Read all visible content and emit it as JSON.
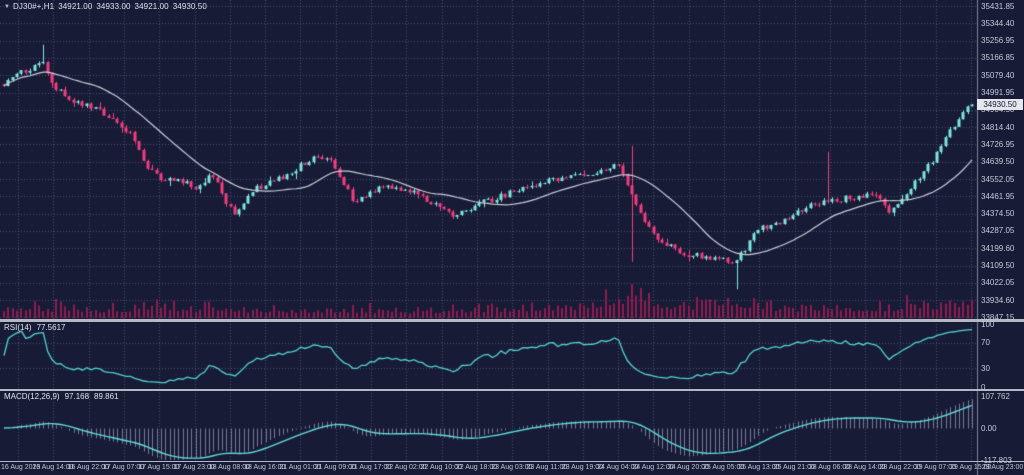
{
  "title": {
    "dropdown_icon": "▼",
    "symbol_timeframe": "DJ30#+,H1",
    "open": "34921.00",
    "high": "34933.00",
    "low": "34921.00",
    "close": "34930.50"
  },
  "price_axis": {
    "labels": [
      "35431.85",
      "35344.40",
      "35256.95",
      "35166.85",
      "35079.40",
      "34991.95",
      "34904.50",
      "34814.40",
      "34726.95",
      "34639.50",
      "34552.05",
      "34461.95",
      "34374.50",
      "34287.05",
      "34199.60",
      "34109.50",
      "34022.05",
      "33934.60",
      "33847.15"
    ],
    "current_price": "34930.50"
  },
  "rsi_pane": {
    "caption": "RSI(14)",
    "value": "77.5617",
    "axis_labels": [
      {
        "text": "100",
        "v": 100
      },
      {
        "text": "70",
        "v": 70
      },
      {
        "text": "30",
        "v": 30
      },
      {
        "text": "0",
        "v": 0
      }
    ],
    "levels": [
      70,
      30
    ]
  },
  "macd_pane": {
    "caption": "MACD(12,26,9)",
    "macd_value": "97.168",
    "signal_value": "89.861",
    "axis_labels": [
      {
        "text": "107.762",
        "v": 107.762
      },
      {
        "text": "0.00",
        "v": 0
      },
      {
        "text": "-117.803",
        "v": -117.803
      }
    ]
  },
  "time_axis": {
    "labels": [
      "16 Aug 2023",
      "16 Aug 14:00",
      "16 Aug 22:00",
      "17 Aug 07:00",
      "17 Aug 15:00",
      "17 Aug 23:00",
      "18 Aug 08:00",
      "18 Aug 16:00",
      "21 Aug 01:00",
      "21 Aug 09:00",
      "21 Aug 17:00",
      "22 Aug 02:00",
      "22 Aug 10:00",
      "22 Aug 18:00",
      "23 Aug 03:00",
      "23 Aug 11:00",
      "23 Aug 19:00",
      "24 Aug 04:00",
      "24 Aug 12:00",
      "24 Aug 20:00",
      "25 Aug 05:00",
      "25 Aug 13:00",
      "25 Aug 21:00",
      "28 Aug 06:00",
      "28 Aug 14:00",
      "28 Aug 22:00",
      "29 Aug 07:00",
      "29 Aug 15:00",
      "29 Aug 23:00"
    ]
  },
  "colors": {
    "background": "#171b36",
    "grid": "rgba(118,126,168,0.50)",
    "bull_candle": "#7ce6de",
    "bear_candle": "#f23d7f",
    "moving_average": "#c9ccd8",
    "volume": "#8f1c4e",
    "rsi_line": "#52d3cf",
    "macd_signal_line": "#5fdcd8",
    "macd_histogram": "rgba(196,202,224,0.55)",
    "separator": "#b4b7c4",
    "axis_text": "#c7cad8",
    "price_tag_bg": "#e6e7ee",
    "price_tag_text": "#10142c"
  },
  "chart_data": {
    "type": "candlestick+indicators",
    "symbol": "DJ30#+",
    "timeframe": "H1",
    "bars": 223,
    "current_ohlc": {
      "open": 34921.0,
      "high": 34933.0,
      "low": 34921.0,
      "close": 34930.5
    },
    "y_axis": {
      "min": 33847.15,
      "max": 35431.85,
      "tick_step": 87.45
    },
    "time_range": {
      "start": "16 Aug 2023",
      "end": "29 Aug 23:00"
    },
    "price_keypoints": [
      [
        0.0,
        35030
      ],
      [
        0.018,
        35090
      ],
      [
        0.04,
        35150
      ],
      [
        0.052,
        35020
      ],
      [
        0.07,
        34950
      ],
      [
        0.1,
        34900
      ],
      [
        0.13,
        34790
      ],
      [
        0.15,
        34600
      ],
      [
        0.165,
        34540
      ],
      [
        0.18,
        34545
      ],
      [
        0.2,
        34500
      ],
      [
        0.215,
        34580
      ],
      [
        0.237,
        34370
      ],
      [
        0.26,
        34500
      ],
      [
        0.29,
        34570
      ],
      [
        0.32,
        34665
      ],
      [
        0.34,
        34630
      ],
      [
        0.363,
        34430
      ],
      [
        0.39,
        34520
      ],
      [
        0.425,
        34480
      ],
      [
        0.462,
        34370
      ],
      [
        0.5,
        34440
      ],
      [
        0.53,
        34490
      ],
      [
        0.568,
        34550
      ],
      [
        0.61,
        34580
      ],
      [
        0.635,
        34620
      ],
      [
        0.648,
        34480
      ],
      [
        0.67,
        34270
      ],
      [
        0.7,
        34175
      ],
      [
        0.735,
        34145
      ],
      [
        0.755,
        34120
      ],
      [
        0.78,
        34300
      ],
      [
        0.81,
        34350
      ],
      [
        0.835,
        34420
      ],
      [
        0.85,
        34440
      ],
      [
        0.875,
        34455
      ],
      [
        0.9,
        34490
      ],
      [
        0.915,
        34370
      ],
      [
        0.94,
        34520
      ],
      [
        0.962,
        34665
      ],
      [
        0.985,
        34850
      ],
      [
        1.0,
        34930.5
      ]
    ],
    "spikes": [
      {
        "i": 9,
        "high": 35235
      },
      {
        "i": 144,
        "high": 34720,
        "low": 34130
      },
      {
        "i": 168,
        "low": 33990
      },
      {
        "i": 189,
        "high": 34690
      }
    ],
    "volume_envelope": [
      [
        0.0,
        0.5
      ],
      [
        0.05,
        0.45
      ],
      [
        0.1,
        0.35
      ],
      [
        0.15,
        0.5
      ],
      [
        0.2,
        0.45
      ],
      [
        0.25,
        0.4
      ],
      [
        0.3,
        0.35
      ],
      [
        0.35,
        0.4
      ],
      [
        0.4,
        0.3
      ],
      [
        0.45,
        0.35
      ],
      [
        0.5,
        0.4
      ],
      [
        0.55,
        0.5
      ],
      [
        0.6,
        0.55
      ],
      [
        0.648,
        1.0
      ],
      [
        0.68,
        0.6
      ],
      [
        0.7,
        0.5
      ],
      [
        0.755,
        0.75
      ],
      [
        0.8,
        0.45
      ],
      [
        0.85,
        0.5
      ],
      [
        0.9,
        0.45
      ],
      [
        0.95,
        0.55
      ],
      [
        0.99,
        0.7
      ],
      [
        1.0,
        1.0
      ]
    ],
    "indicators": {
      "moving_average_period": 20,
      "rsi": {
        "period": 14,
        "current": 77.5617,
        "levels": [
          70,
          30
        ],
        "range": [
          0,
          100
        ]
      },
      "macd": {
        "fast": 12,
        "slow": 26,
        "signal": 9,
        "current_macd": 97.168,
        "current_signal": 89.861,
        "axis_max": 107.762,
        "axis_min": -117.803
      }
    }
  }
}
